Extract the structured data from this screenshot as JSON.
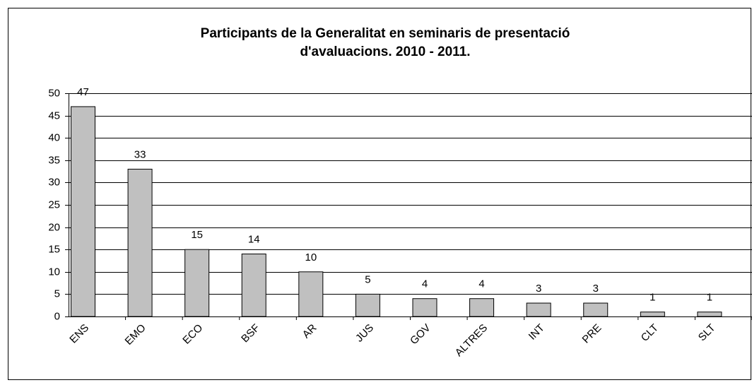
{
  "chart_data": {
    "type": "bar",
    "title": [
      "Participants de la Generalitat en seminaris de presentació",
      "d'avaluacions. 2010 - 2011."
    ],
    "categories": [
      "ENS",
      "EMO",
      "ECO",
      "BSF",
      "AR",
      "JUS",
      "GOV",
      "ALTRES",
      "INT",
      "PRE",
      "CLT",
      "SLT"
    ],
    "values": [
      47,
      33,
      15,
      14,
      10,
      5,
      4,
      4,
      3,
      3,
      1,
      1
    ],
    "color": "#c0c0c0",
    "ylim": [
      0,
      50
    ],
    "yticks": [
      0,
      5,
      10,
      15,
      20,
      25,
      30,
      35,
      40,
      45,
      50
    ],
    "grid": true
  }
}
